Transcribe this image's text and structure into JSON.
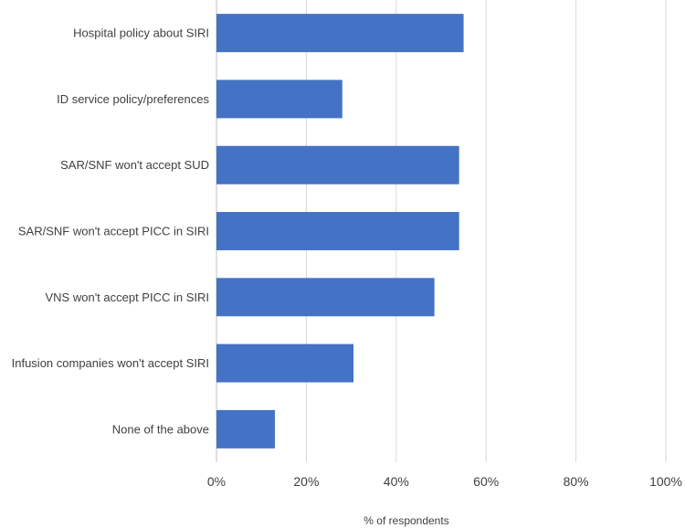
{
  "chart_data": {
    "type": "bar",
    "orientation": "horizontal",
    "categories": [
      "Hospital policy about SIRI",
      "ID service policy/preferences",
      "SAR/SNF won't accept SUD",
      "SAR/SNF won't accept PICC in SIRI",
      "VNS won't accept PICC in SIRI",
      "Infusion companies won't accept SIRI",
      "None of the above"
    ],
    "values": [
      55,
      28,
      54,
      54,
      48.5,
      30.5,
      13
    ],
    "xlabel": "% of respondents",
    "xlim": [
      0,
      100
    ],
    "xticks": [
      "0%",
      "20%",
      "40%",
      "60%",
      "80%",
      "100%"
    ],
    "grid": "vertical",
    "legend": "none",
    "bar_color": "#4472C4",
    "grid_color": "#D9D9D9"
  }
}
